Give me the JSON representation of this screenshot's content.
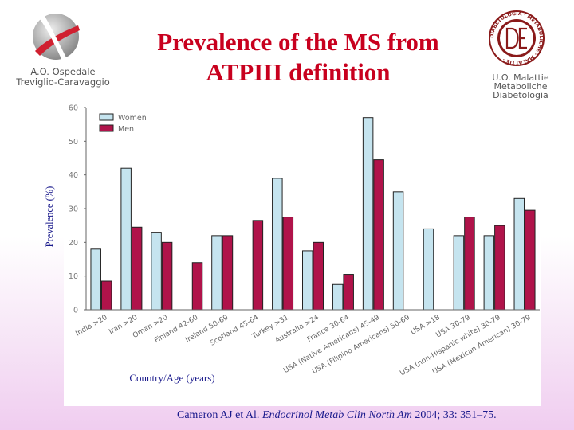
{
  "header": {
    "title_line1": "Prevalence of the MS from",
    "title_line2": "ATPIII definition",
    "hospital_line1": "A.O. Ospedale",
    "hospital_line2": "Treviglio-Caravaggio",
    "unit_line1": "U.O. Malattie",
    "unit_line2": "Metaboliche",
    "unit_line3": "Diabetologia",
    "seal_ring_text": "DIABETOLOGIA · METABOLICHE · MALATTIE ·"
  },
  "footer": {
    "citation_authors": "Cameron AJ et Al.",
    "citation_journal": "Endocrinol Metab Clin North Am",
    "citation_details": "2004; 33: 351–75."
  },
  "colors": {
    "title": "#c8001e",
    "women": "#c5e4ef",
    "men": "#b0134a",
    "source": "#1a1a8c"
  },
  "chart_data": {
    "type": "bar",
    "xlabel": "Country/Age (years)",
    "ylabel": "Prevalence (%)",
    "ylim": [
      0,
      60
    ],
    "yticks": [
      0,
      10,
      20,
      30,
      40,
      50,
      60
    ],
    "legend_position": "top-left",
    "categories": [
      "India >20",
      "Iran >20",
      "Oman >20",
      "Finland 42-60",
      "Ireland 50-69",
      "Scotland 45-64",
      "Turkey >31",
      "Australia >24",
      "France 30-64",
      "USA (Native Americans) 45-49",
      "USA (Filipino Americans) 50-69",
      "USA >18",
      "USA 30-79",
      "USA (non-Hispanic white) 30-79",
      "USA (Mexican American) 30-79"
    ],
    "series": [
      {
        "name": "Women",
        "values": [
          18,
          42,
          23,
          null,
          22,
          null,
          39,
          17.5,
          7.5,
          57,
          35,
          24,
          22,
          22,
          33
        ]
      },
      {
        "name": "Men",
        "values": [
          8.5,
          24.5,
          20,
          14,
          22,
          26.5,
          27.5,
          20,
          10.5,
          44.5,
          0,
          null,
          27.5,
          25,
          29.5
        ]
      }
    ]
  }
}
